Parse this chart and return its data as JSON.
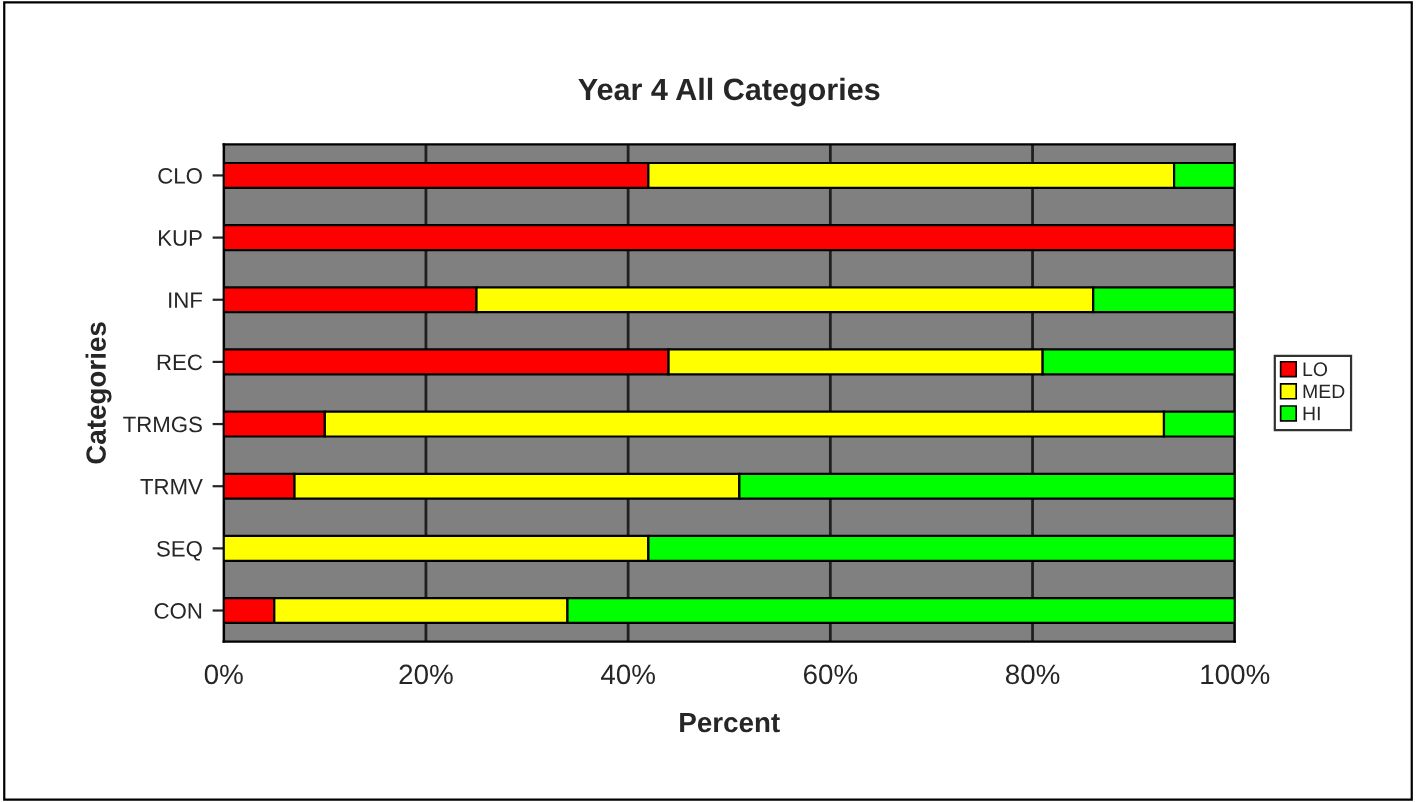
{
  "chart_data": {
    "type": "bar",
    "orientation": "horizontal",
    "stacked": true,
    "title": "Year 4 All Categories",
    "xlabel": "Percent",
    "ylabel": "Categories",
    "categories": [
      "CLO",
      "KUP",
      "INF",
      "REC",
      "TRMGS",
      "TRMV",
      "SEQ",
      "CON"
    ],
    "series": [
      {
        "name": "LO",
        "color": "#ff0000",
        "values": [
          42,
          100,
          25,
          44,
          10,
          7,
          0,
          5
        ]
      },
      {
        "name": "MED",
        "color": "#ffff00",
        "values": [
          52,
          0,
          61,
          37,
          83,
          44,
          42,
          29
        ]
      },
      {
        "name": "HI",
        "color": "#00ff00",
        "values": [
          6,
          0,
          14,
          19,
          7,
          49,
          58,
          66
        ]
      }
    ],
    "xlim": [
      0,
      100
    ],
    "xticks": [
      {
        "value": 0,
        "label": "0%"
      },
      {
        "value": 20,
        "label": "20%"
      },
      {
        "value": 40,
        "label": "40%"
      },
      {
        "value": 60,
        "label": "60%"
      },
      {
        "value": 80,
        "label": "80%"
      },
      {
        "value": 100,
        "label": "100%"
      }
    ],
    "grid": "x",
    "legend": "right"
  }
}
